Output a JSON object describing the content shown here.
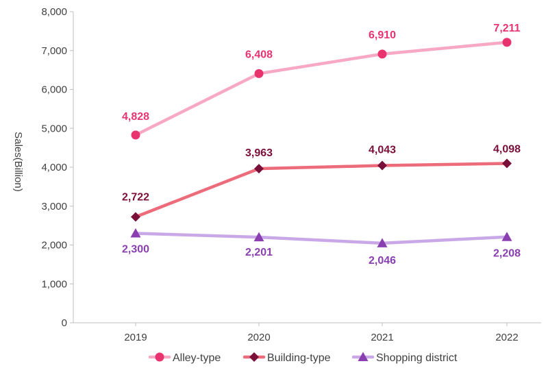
{
  "chart_data": {
    "type": "line",
    "categories": [
      "2019",
      "2020",
      "2021",
      "2022"
    ],
    "ylabel": "Sales(Billion)",
    "ylim": [
      0,
      8000
    ],
    "yticks": [
      0,
      1000,
      2000,
      3000,
      4000,
      5000,
      6000,
      7000,
      8000
    ],
    "ytick_labels": [
      "0",
      "1,000",
      "2,000",
      "3,000",
      "4,000",
      "5,000",
      "6,000",
      "7,000",
      "8,000"
    ],
    "grid": false,
    "legend_position": "bottom",
    "series": [
      {
        "name": "Alley-type",
        "values": [
          4828,
          6408,
          6910,
          7211
        ],
        "labels": [
          "4,828",
          "6,408",
          "6,910",
          "7,211"
        ],
        "marker": "circle",
        "line_color": "#f7a8c4",
        "marker_color": "#e8336f",
        "label_color": "#e8336f"
      },
      {
        "name": "Building-type",
        "values": [
          2722,
          3963,
          4043,
          4098
        ],
        "labels": [
          "2,722",
          "3,963",
          "4,043",
          "4,098"
        ],
        "marker": "diamond",
        "line_color": "#ec6c7b",
        "marker_color": "#7a0f3a",
        "label_color": "#7a0f3a"
      },
      {
        "name": "Shopping district",
        "values": [
          2300,
          2201,
          2046,
          2208
        ],
        "labels": [
          "2,300",
          "2,201",
          "2,046",
          "2,208"
        ],
        "marker": "triangle",
        "line_color": "#c9a8e8",
        "marker_color": "#8a3fb0",
        "label_color": "#8a3fb0"
      }
    ]
  }
}
